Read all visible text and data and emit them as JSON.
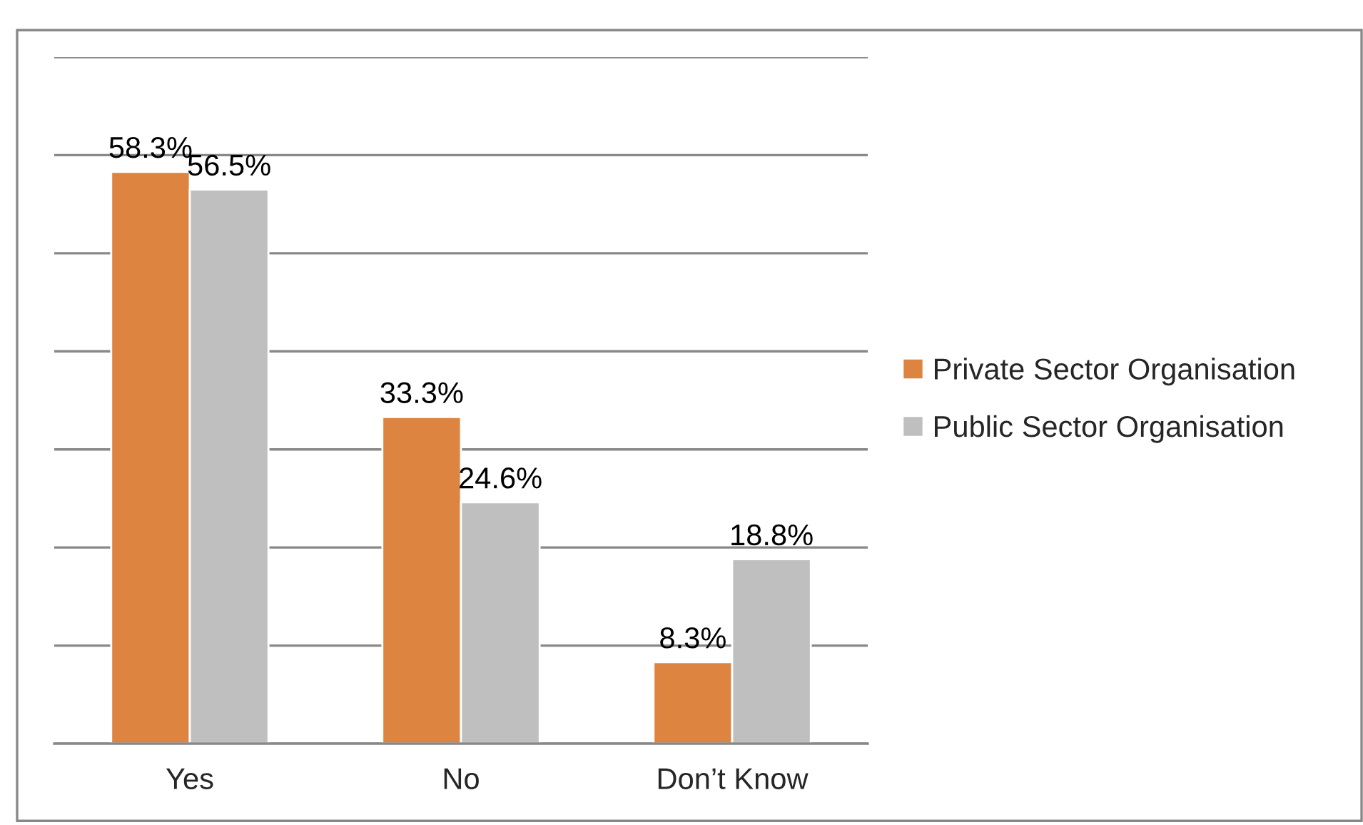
{
  "chart_data": {
    "type": "bar",
    "categories": [
      "Yes",
      "No",
      "Don’t Know"
    ],
    "series": [
      {
        "name": "Private Sector Organisation",
        "color": "#dd8440",
        "values": [
          58.3,
          33.3,
          8.3
        ],
        "value_labels": [
          "58.3%",
          "33.3%",
          "8.3%"
        ]
      },
      {
        "name": "Public Sector Organisation",
        "color": "#bfbfbf",
        "values": [
          56.5,
          24.6,
          18.8
        ],
        "value_labels": [
          "56.5%",
          "24.6%",
          "18.8%"
        ]
      }
    ],
    "ylim": [
      0,
      70
    ],
    "yticks": [
      {
        "value": 0,
        "label": null
      },
      {
        "value": 10,
        "label": null
      },
      {
        "value": 20,
        "label": null
      },
      {
        "value": 30,
        "label": null
      },
      {
        "value": 40,
        "label": null
      },
      {
        "value": 50,
        "label": null
      },
      {
        "value": 60,
        "label": null
      },
      {
        "value": 70,
        "label": null
      }
    ],
    "tick_labels": "x",
    "grid": "y",
    "legend": "right"
  }
}
